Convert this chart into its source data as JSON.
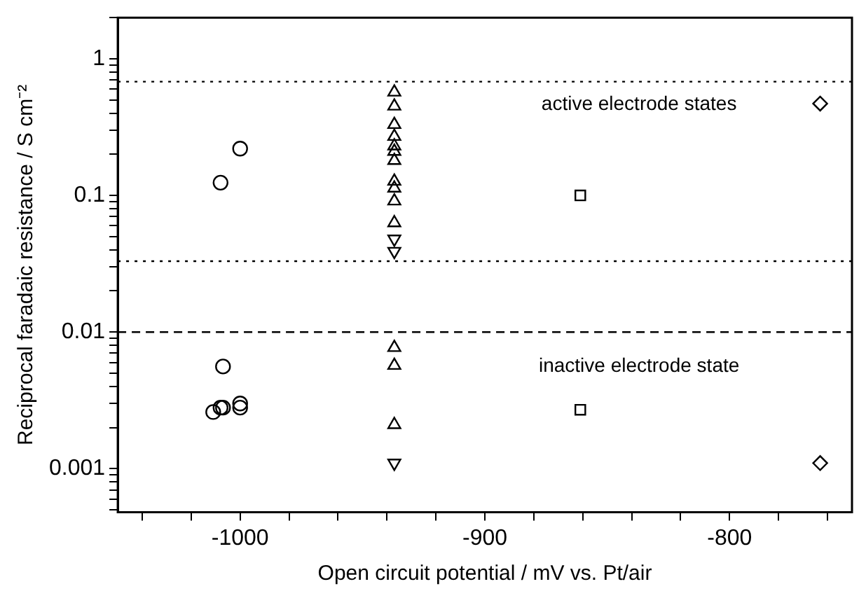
{
  "chart_data": {
    "type": "scatter",
    "xlabel": "Open circuit potential / mV vs. Pt/air",
    "ylabel": "Reciprocal faradaic resistance / S cm⁻²",
    "log": "y",
    "grid": false,
    "legend": false,
    "xlim": [
      -1050,
      -750
    ],
    "ylim": [
      0.00048,
      2.0
    ],
    "xticks": [
      {
        "value": -1040,
        "label": null
      },
      {
        "value": -1020,
        "label": null
      },
      -1000,
      {
        "value": -980,
        "label": null
      },
      {
        "value": -960,
        "label": null
      },
      {
        "value": -940,
        "label": null
      },
      {
        "value": -920,
        "label": null
      },
      -900,
      {
        "value": -880,
        "label": null
      },
      {
        "value": -860,
        "label": null
      },
      {
        "value": -840,
        "label": null
      },
      {
        "value": -820,
        "label": null
      },
      -800,
      {
        "value": -780,
        "label": null
      },
      {
        "value": -760,
        "label": null
      }
    ],
    "yticks": [
      {
        "value": 0.0005,
        "label": null
      },
      {
        "value": 0.0006,
        "label": null
      },
      {
        "value": 0.0007,
        "label": null
      },
      {
        "value": 0.0008,
        "label": null
      },
      {
        "value": 0.0009,
        "label": null
      },
      0.001,
      {
        "value": 0.002,
        "label": null
      },
      {
        "value": 0.003,
        "label": null
      },
      {
        "value": 0.004,
        "label": null
      },
      {
        "value": 0.005,
        "label": null
      },
      {
        "value": 0.006,
        "label": null
      },
      {
        "value": 0.007,
        "label": null
      },
      {
        "value": 0.008,
        "label": null
      },
      {
        "value": 0.009,
        "label": null
      },
      0.01,
      {
        "value": 0.02,
        "label": null
      },
      {
        "value": 0.03,
        "label": null
      },
      {
        "value": 0.04,
        "label": null
      },
      {
        "value": 0.05,
        "label": null
      },
      {
        "value": 0.06,
        "label": null
      },
      {
        "value": 0.07,
        "label": null
      },
      {
        "value": 0.08,
        "label": null
      },
      {
        "value": 0.09,
        "label": null
      },
      0.1,
      {
        "value": 0.2,
        "label": null
      },
      {
        "value": 0.3,
        "label": null
      },
      {
        "value": 0.4,
        "label": null
      },
      {
        "value": 0.5,
        "label": null
      },
      {
        "value": 0.6,
        "label": null
      },
      {
        "value": 0.7,
        "label": null
      },
      {
        "value": 0.8,
        "label": null
      },
      {
        "value": 0.9,
        "label": null
      },
      1,
      {
        "value": 2,
        "label": null
      }
    ],
    "series": [
      {
        "marker": "circle",
        "color": "#000000",
        "x": [
          -1008,
          -1000,
          -1007,
          -1011,
          -1008,
          -1007,
          -1000,
          -1000
        ],
        "values": [
          0.124,
          0.22,
          0.0056,
          0.0026,
          0.0028,
          0.0028,
          0.003,
          0.0028
        ]
      },
      {
        "marker": "triangle",
        "color": "#000000",
        "x": [
          -937,
          -937,
          -937,
          -937,
          -937,
          -937,
          -937,
          -937,
          -937,
          -937,
          -937,
          -937,
          -937,
          -937
        ],
        "values": [
          0.57,
          0.45,
          0.33,
          0.27,
          0.23,
          0.21,
          0.18,
          0.127,
          0.113,
          0.091,
          0.063,
          0.0077,
          0.0057,
          0.0021
        ]
      },
      {
        "marker": "triangle_down",
        "color": "#000000",
        "x": [
          -937,
          -937,
          -937
        ],
        "values": [
          0.048,
          0.039,
          0.0011
        ]
      },
      {
        "marker": "square",
        "color": "#000000",
        "x": [
          -861,
          -861
        ],
        "values": [
          0.1,
          0.0027
        ]
      },
      {
        "marker": "diamond",
        "color": "#000000",
        "x": [
          -763,
          -763
        ],
        "values": [
          0.47,
          0.0011
        ]
      }
    ],
    "ref_lines": [
      {
        "axis": "y",
        "value": 0.68,
        "line_style": "dotted",
        "color": "#000000"
      },
      {
        "axis": "y",
        "value": 0.033,
        "line_style": "dotted",
        "color": "#000000"
      },
      {
        "axis": "y",
        "value": 0.01,
        "line_style": "dashed",
        "color": "#000000"
      }
    ],
    "annotations": [
      "active electrode states",
      "inactive electrode state"
    ]
  }
}
